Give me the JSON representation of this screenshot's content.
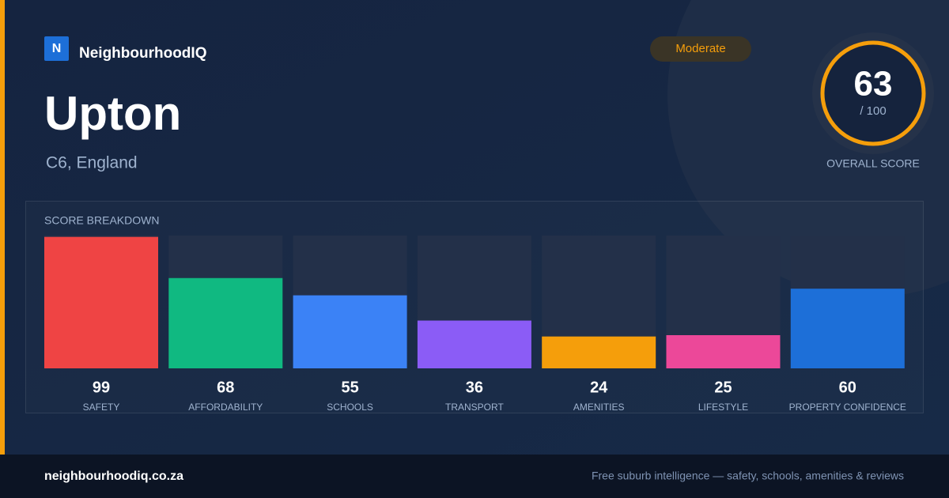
{
  "brand": {
    "logo": "N",
    "name": "NeighbourhoodIQ"
  },
  "place": {
    "name": "Upton",
    "region": "C6, England"
  },
  "badge": "Moderate",
  "score": {
    "value": 63,
    "label": "/ 100",
    "caption": "OVERALL SCORE"
  },
  "chart_data": {
    "type": "bar",
    "title": "SCORE BREAKDOWN",
    "categories": [
      "SAFETY",
      "AFFORDABILITY",
      "SCHOOLS",
      "TRANSPORT",
      "AMENITIES",
      "LIFESTYLE",
      "PROPERTY CONFIDENCE"
    ],
    "values": [
      99,
      68,
      55,
      36,
      24,
      25,
      60
    ],
    "colors": [
      "#ef4444",
      "#10b981",
      "#3b82f6",
      "#8b5cf6",
      "#f59e0b",
      "#ec4899",
      "#1d6fd8"
    ],
    "ylim": [
      0,
      100
    ]
  },
  "footer": {
    "site": "neighbourhoodiq.co.za",
    "tagline": "Free suburb intelligence — safety, schools, amenities & reviews"
  }
}
